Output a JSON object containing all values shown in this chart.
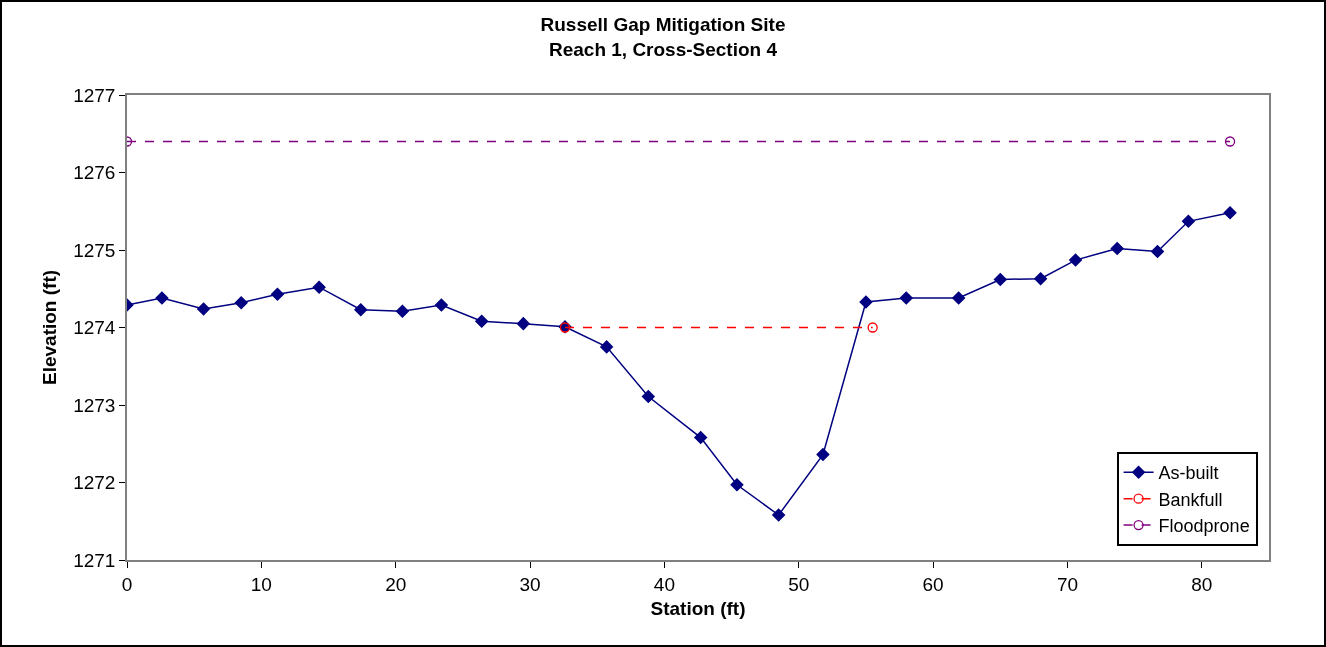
{
  "chart_data": {
    "type": "line",
    "title": "Russell Gap Mitigation Site\nReach 1, Cross-Section 4",
    "xlabel": "Station (ft)",
    "ylabel": "Elevation (ft)",
    "xlim": [
      0,
      85
    ],
    "xticks": [
      0,
      10,
      20,
      30,
      40,
      50,
      60,
      70,
      80
    ],
    "ylim": [
      1271,
      1277
    ],
    "yticks": [
      1271,
      1272,
      1273,
      1274,
      1275,
      1276,
      1277
    ],
    "grid": false,
    "legend": "bottom right",
    "series": [
      {
        "name": "As-built",
        "color": "#000080",
        "marker": "diamond",
        "line_style": "solid",
        "x": [
          0,
          2.6,
          5.7,
          8.5,
          11.2,
          14.3,
          17.4,
          20.5,
          23.4,
          26.4,
          29.5,
          32.6,
          35.7,
          38.8,
          42.7,
          45.4,
          48.5,
          51.8,
          55.0,
          58.0,
          61.9,
          65.0,
          68.0,
          70.6,
          73.7,
          76.7,
          79.0,
          82.1
        ],
        "values": [
          1274.29,
          1274.38,
          1274.24,
          1274.32,
          1274.43,
          1274.52,
          1274.23,
          1274.21,
          1274.29,
          1274.08,
          1274.05,
          1274.01,
          1273.75,
          1273.11,
          1272.58,
          1271.97,
          1271.58,
          1272.36,
          1274.33,
          1274.38,
          1274.38,
          1274.62,
          1274.63,
          1274.87,
          1275.02,
          1274.98,
          1275.37,
          1275.48
        ]
      },
      {
        "name": "Bankfull",
        "color": "#ff0000",
        "marker": "circle-open",
        "line_style": "dashed",
        "x": [
          32.6,
          55.5
        ],
        "values": [
          1274.0,
          1274.0
        ]
      },
      {
        "name": "Floodprone",
        "color": "#800080",
        "marker": "circle-open",
        "line_style": "dashed",
        "x": [
          0,
          82.1
        ],
        "values": [
          1276.4,
          1276.4
        ]
      }
    ]
  }
}
